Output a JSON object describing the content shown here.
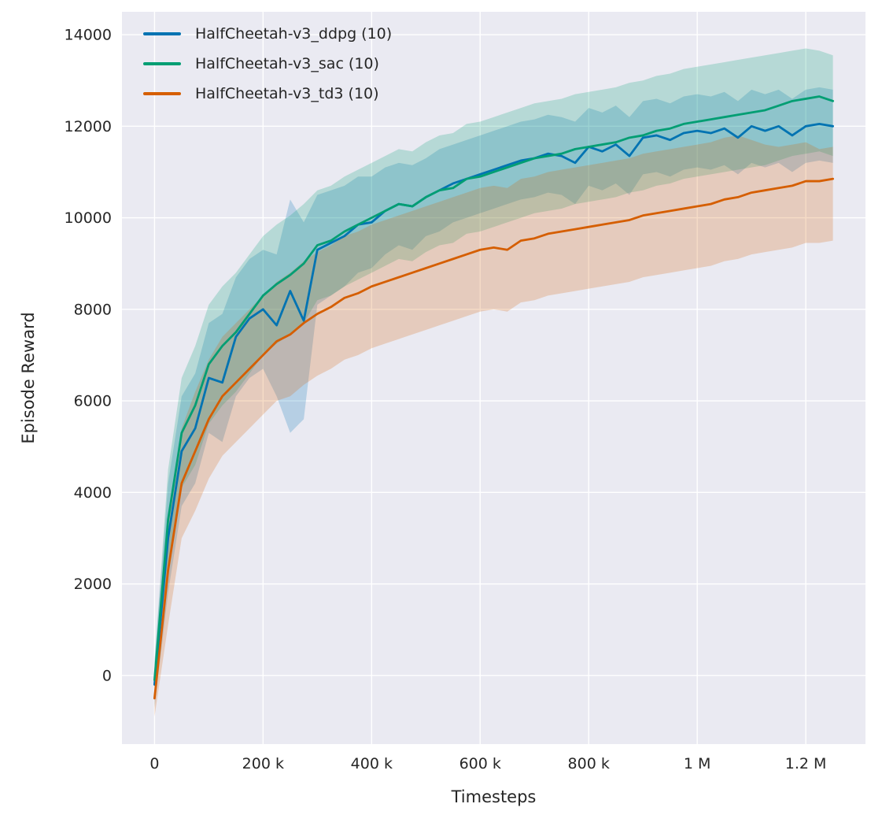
{
  "chart_data": {
    "type": "line",
    "title": "",
    "xlabel": "Timesteps",
    "ylabel": "Episode Reward",
    "x_unit": "thousands of timesteps",
    "xlim": [
      -60,
      1310
    ],
    "ylim": [
      -1500,
      14500
    ],
    "grid": true,
    "legend_position": "upper left",
    "background": "#eaeaf2",
    "grid_color": "#ffffff",
    "text_color": "#262626",
    "x_ticks": {
      "values": [
        0,
        200,
        400,
        600,
        800,
        1000,
        1200
      ],
      "labels": [
        "0",
        "200 k",
        "400 k",
        "600 k",
        "800 k",
        "1 M",
        "1.2 M"
      ]
    },
    "y_ticks": {
      "values": [
        0,
        2000,
        4000,
        6000,
        8000,
        10000,
        12000,
        14000
      ],
      "labels": [
        "0",
        "2000",
        "4000",
        "6000",
        "8000",
        "10000",
        "12000",
        "14000"
      ]
    },
    "x": [
      0,
      25,
      50,
      75,
      100,
      125,
      150,
      175,
      200,
      225,
      250,
      275,
      300,
      325,
      350,
      375,
      400,
      425,
      450,
      475,
      500,
      525,
      550,
      575,
      600,
      625,
      650,
      675,
      700,
      725,
      750,
      775,
      800,
      825,
      850,
      875,
      900,
      925,
      950,
      975,
      1000,
      1025,
      1050,
      1075,
      1100,
      1125,
      1150,
      1175,
      1200,
      1225,
      1250
    ],
    "series": [
      {
        "name": "HalfCheetah-v3_ddpg (10)",
        "color": "#0173b2",
        "mean": [
          -200,
          3000,
          4900,
          5400,
          6500,
          6400,
          7400,
          7800,
          8000,
          7650,
          8400,
          7750,
          9300,
          9450,
          9600,
          9850,
          9900,
          10150,
          10300,
          10250,
          10450,
          10600,
          10750,
          10850,
          10950,
          11050,
          11150,
          11250,
          11300,
          11400,
          11350,
          11200,
          11550,
          11450,
          11600,
          11350,
          11750,
          11800,
          11700,
          11850,
          11900,
          11850,
          11950,
          11750,
          12000,
          11900,
          12000,
          11800,
          12000,
          12050,
          12000
        ],
        "lo": [
          -700,
          1800,
          3700,
          4200,
          5300,
          5100,
          6100,
          6500,
          6700,
          6100,
          5300,
          5600,
          8100,
          8300,
          8500,
          8800,
          8900,
          9200,
          9400,
          9300,
          9600,
          9700,
          9900,
          10000,
          10100,
          10200,
          10300,
          10400,
          10450,
          10550,
          10500,
          10300,
          10700,
          10600,
          10750,
          10500,
          10950,
          11000,
          10900,
          11050,
          11100,
          11050,
          11150,
          10950,
          11200,
          11100,
          11200,
          11000,
          11200,
          11250,
          11200
        ],
        "hi": [
          300,
          4200,
          6100,
          6600,
          7700,
          7900,
          8700,
          9100,
          9300,
          9200,
          10400,
          9900,
          10500,
          10600,
          10700,
          10900,
          10900,
          11100,
          11200,
          11150,
          11300,
          11500,
          11600,
          11700,
          11800,
          11900,
          12000,
          12100,
          12150,
          12250,
          12200,
          12100,
          12400,
          12300,
          12450,
          12200,
          12550,
          12600,
          12500,
          12650,
          12700,
          12650,
          12750,
          12550,
          12800,
          12700,
          12800,
          12600,
          12800,
          12850,
          12800
        ]
      },
      {
        "name": "HalfCheetah-v3_sac (10)",
        "color": "#029e73",
        "mean": [
          -100,
          3400,
          5300,
          5900,
          6800,
          7200,
          7500,
          7900,
          8300,
          8550,
          8750,
          9000,
          9400,
          9500,
          9700,
          9850,
          10000,
          10150,
          10300,
          10250,
          10450,
          10600,
          10650,
          10850,
          10900,
          11000,
          11100,
          11200,
          11300,
          11350,
          11400,
          11500,
          11550,
          11600,
          11650,
          11750,
          11800,
          11900,
          11950,
          12050,
          12100,
          12150,
          12200,
          12250,
          12300,
          12350,
          12450,
          12550,
          12600,
          12650,
          12550
        ],
        "lo": [
          -500,
          2300,
          4100,
          4600,
          5500,
          5900,
          6200,
          6600,
          7000,
          7250,
          7450,
          7700,
          8200,
          8300,
          8500,
          8650,
          8800,
          8950,
          9100,
          9050,
          9250,
          9400,
          9450,
          9650,
          9700,
          9800,
          9900,
          10000,
          10100,
          10150,
          10200,
          10300,
          10350,
          10400,
          10450,
          10550,
          10600,
          10700,
          10750,
          10850,
          10900,
          10950,
          11000,
          11050,
          11100,
          11150,
          11250,
          11350,
          11400,
          11450,
          11350
        ],
        "hi": [
          300,
          4500,
          6500,
          7200,
          8100,
          8500,
          8800,
          9200,
          9600,
          9850,
          10050,
          10300,
          10600,
          10700,
          10900,
          11050,
          11200,
          11350,
          11500,
          11450,
          11650,
          11800,
          11850,
          12050,
          12100,
          12200,
          12300,
          12400,
          12500,
          12550,
          12600,
          12700,
          12750,
          12800,
          12850,
          12950,
          13000,
          13100,
          13150,
          13250,
          13300,
          13350,
          13400,
          13450,
          13500,
          13550,
          13600,
          13650,
          13700,
          13650,
          13550
        ]
      },
      {
        "name": "HalfCheetah-v3_td3 (10)",
        "color": "#d55e00",
        "mean": [
          -500,
          2300,
          4200,
          4900,
          5600,
          6100,
          6400,
          6700,
          7000,
          7300,
          7450,
          7700,
          7900,
          8050,
          8250,
          8350,
          8500,
          8600,
          8700,
          8800,
          8900,
          9000,
          9100,
          9200,
          9300,
          9350,
          9300,
          9500,
          9550,
          9650,
          9700,
          9750,
          9800,
          9850,
          9900,
          9950,
          10050,
          10100,
          10150,
          10200,
          10250,
          10300,
          10400,
          10450,
          10550,
          10600,
          10650,
          10700,
          10800,
          10800,
          10850
        ],
        "lo": [
          -900,
          1100,
          3000,
          3600,
          4300,
          4800,
          5100,
          5400,
          5700,
          6000,
          6100,
          6350,
          6550,
          6700,
          6900,
          7000,
          7150,
          7250,
          7350,
          7450,
          7550,
          7650,
          7750,
          7850,
          7950,
          8000,
          7950,
          8150,
          8200,
          8300,
          8350,
          8400,
          8450,
          8500,
          8550,
          8600,
          8700,
          8750,
          8800,
          8850,
          8900,
          8950,
          9050,
          9100,
          9200,
          9250,
          9300,
          9350,
          9450,
          9450,
          9500
        ],
        "hi": [
          -100,
          3500,
          5400,
          6200,
          6900,
          7400,
          7700,
          8000,
          8300,
          8600,
          8800,
          9050,
          9250,
          9400,
          9600,
          9700,
          9850,
          9950,
          10050,
          10150,
          10250,
          10350,
          10450,
          10550,
          10650,
          10700,
          10650,
          10850,
          10900,
          11000,
          11050,
          11100,
          11150,
          11200,
          11250,
          11300,
          11400,
          11450,
          11500,
          11550,
          11600,
          11650,
          11750,
          11800,
          11700,
          11600,
          11550,
          11600,
          11650,
          11500,
          11550
        ]
      }
    ]
  }
}
